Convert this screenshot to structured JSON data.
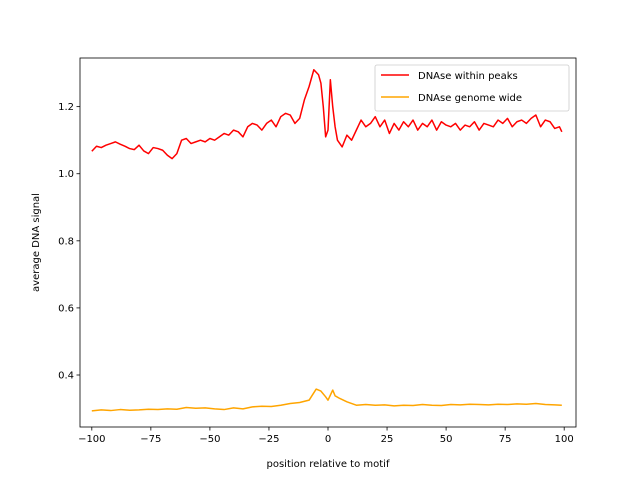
{
  "chart_data": {
    "type": "line",
    "title": "",
    "xlabel": "position relative to motif",
    "ylabel": "average DNA signal",
    "xlim": [
      -105,
      105
    ],
    "ylim": [
      0.245,
      1.345
    ],
    "xticks": [
      -100,
      -75,
      -50,
      -25,
      0,
      25,
      50,
      75,
      100
    ],
    "xtick_labels": [
      "−100",
      "−75",
      "−50",
      "−25",
      "0",
      "25",
      "50",
      "75",
      "100"
    ],
    "yticks": [
      0.4,
      0.6,
      0.8,
      1.0,
      1.2
    ],
    "ytick_labels": [
      "0.4",
      "0.6",
      "0.8",
      "1.0",
      "1.2"
    ],
    "grid": false,
    "legend_position": "top-right",
    "series": [
      {
        "name": "DNAse within peaks",
        "color": "#ff0000",
        "x": [
          -100,
          -98,
          -96,
          -94,
          -92,
          -90,
          -88,
          -86,
          -84,
          -82,
          -80,
          -78,
          -76,
          -74,
          -72,
          -70,
          -68,
          -66,
          -64,
          -62,
          -60,
          -58,
          -56,
          -54,
          -52,
          -50,
          -48,
          -46,
          -44,
          -42,
          -40,
          -38,
          -36,
          -34,
          -32,
          -30,
          -28,
          -26,
          -24,
          -22,
          -20,
          -18,
          -16,
          -14,
          -12,
          -10,
          -8,
          -6,
          -4,
          -3,
          -2,
          -1,
          0,
          1,
          2,
          3,
          4,
          6,
          8,
          10,
          12,
          14,
          16,
          18,
          20,
          22,
          24,
          26,
          28,
          30,
          32,
          34,
          36,
          38,
          40,
          42,
          44,
          46,
          48,
          50,
          52,
          54,
          56,
          58,
          60,
          62,
          64,
          66,
          68,
          70,
          72,
          74,
          76,
          78,
          80,
          82,
          84,
          86,
          88,
          90,
          92,
          94,
          96,
          98,
          99
        ],
        "values": [
          1.067,
          1.082,
          1.078,
          1.085,
          1.09,
          1.095,
          1.088,
          1.082,
          1.075,
          1.072,
          1.085,
          1.068,
          1.06,
          1.078,
          1.075,
          1.07,
          1.055,
          1.045,
          1.06,
          1.1,
          1.105,
          1.09,
          1.095,
          1.1,
          1.095,
          1.105,
          1.1,
          1.11,
          1.12,
          1.115,
          1.13,
          1.125,
          1.11,
          1.14,
          1.15,
          1.145,
          1.13,
          1.15,
          1.16,
          1.14,
          1.17,
          1.18,
          1.175,
          1.15,
          1.165,
          1.22,
          1.26,
          1.31,
          1.295,
          1.27,
          1.2,
          1.11,
          1.13,
          1.28,
          1.2,
          1.14,
          1.1,
          1.08,
          1.115,
          1.1,
          1.13,
          1.16,
          1.14,
          1.15,
          1.17,
          1.14,
          1.16,
          1.12,
          1.15,
          1.13,
          1.155,
          1.14,
          1.16,
          1.13,
          1.15,
          1.14,
          1.16,
          1.13,
          1.155,
          1.145,
          1.14,
          1.15,
          1.13,
          1.145,
          1.14,
          1.155,
          1.13,
          1.15,
          1.145,
          1.14,
          1.16,
          1.15,
          1.165,
          1.14,
          1.155,
          1.16,
          1.15,
          1.165,
          1.175,
          1.14,
          1.16,
          1.155,
          1.135,
          1.14,
          1.125
        ]
      },
      {
        "name": "DNAse genome wide",
        "color": "#ffa500",
        "x": [
          -100,
          -96,
          -92,
          -88,
          -84,
          -80,
          -76,
          -72,
          -68,
          -64,
          -60,
          -56,
          -52,
          -48,
          -44,
          -40,
          -36,
          -32,
          -28,
          -24,
          -20,
          -16,
          -12,
          -8,
          -5,
          -3,
          -1,
          0,
          1,
          2,
          3,
          5,
          8,
          12,
          16,
          20,
          24,
          28,
          32,
          36,
          40,
          44,
          48,
          52,
          56,
          60,
          64,
          68,
          72,
          76,
          80,
          84,
          88,
          92,
          96,
          99
        ],
        "values": [
          0.293,
          0.296,
          0.294,
          0.297,
          0.295,
          0.296,
          0.298,
          0.297,
          0.299,
          0.298,
          0.303,
          0.301,
          0.302,
          0.299,
          0.297,
          0.302,
          0.299,
          0.305,
          0.307,
          0.306,
          0.31,
          0.315,
          0.318,
          0.325,
          0.358,
          0.352,
          0.335,
          0.325,
          0.34,
          0.355,
          0.338,
          0.33,
          0.32,
          0.31,
          0.312,
          0.31,
          0.311,
          0.308,
          0.31,
          0.309,
          0.312,
          0.31,
          0.309,
          0.312,
          0.311,
          0.313,
          0.312,
          0.311,
          0.313,
          0.312,
          0.314,
          0.313,
          0.315,
          0.312,
          0.311,
          0.31
        ]
      }
    ]
  }
}
